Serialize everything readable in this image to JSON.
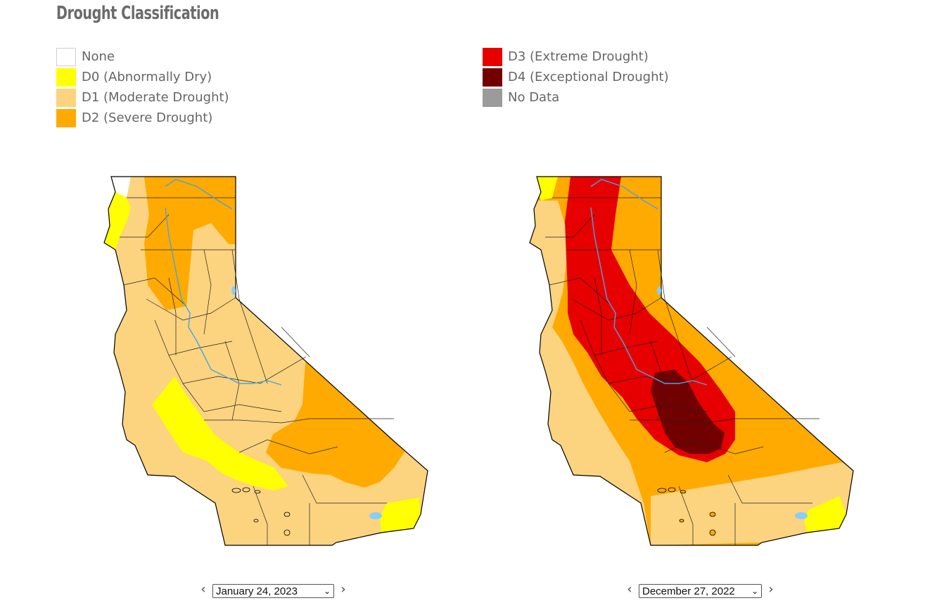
{
  "title": "Drought Classification",
  "legend": [
    {
      "label": "None",
      "color": "#ffffff"
    },
    {
      "label": "D0 (Abnormally Dry)",
      "color": "#ffff00"
    },
    {
      "label": "D1 (Moderate Drought)",
      "color": "#fcd37f"
    },
    {
      "label": "D2 (Severe Drought)",
      "color": "#ffaa00"
    },
    {
      "label": "D3 (Extreme Drought)",
      "color": "#e60000"
    },
    {
      "label": "D4 (Exceptional Drought)",
      "color": "#730000"
    },
    {
      "label": "No Data",
      "color": "#9b9b9b"
    }
  ],
  "maps": [
    {
      "date": "January 24, 2023"
    },
    {
      "date": "December 27, 2022"
    }
  ],
  "icons": {
    "prev": "chevron-left-icon",
    "next": "chevron-right-icon",
    "dropdown": "chevron-down-icon"
  }
}
